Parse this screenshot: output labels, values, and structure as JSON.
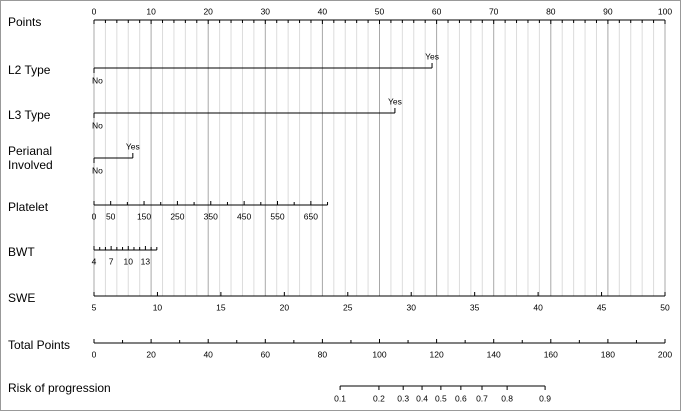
{
  "chart_data": {
    "type": "nomogram",
    "grid": true,
    "rows": [
      {
        "kind": "points",
        "label": "Points",
        "lim": [
          0,
          100
        ],
        "ticks": [
          0,
          10,
          20,
          30,
          40,
          50,
          60,
          70,
          80,
          90,
          100
        ],
        "minor_ticks": [
          2,
          4,
          6,
          8,
          12,
          14,
          16,
          18,
          22,
          24,
          26,
          28,
          32,
          34,
          36,
          38,
          42,
          44,
          46,
          48,
          52,
          54,
          56,
          58,
          62,
          64,
          66,
          68,
          72,
          74,
          76,
          78,
          82,
          84,
          86,
          88,
          92,
          94,
          96,
          98
        ]
      },
      {
        "kind": "categorical",
        "label": "L2 Type",
        "categories": [
          "No",
          "Yes"
        ],
        "points": [
          0,
          59.2
        ]
      },
      {
        "kind": "categorical",
        "label": "L3 Type",
        "categories": [
          "No",
          "Yes"
        ],
        "points": [
          0,
          52.7
        ]
      },
      {
        "kind": "categorical",
        "label": [
          "Perianal",
          "Involved"
        ],
        "categories": [
          "No",
          "Yes"
        ],
        "points": [
          0,
          6.8
        ]
      },
      {
        "kind": "axis",
        "label": "Platelet",
        "lim": [
          0,
          700
        ],
        "points_lim": [
          0,
          40.9
        ],
        "ticks": [
          0,
          50,
          150,
          250,
          350,
          450,
          550,
          650
        ],
        "minor_ticks": [
          100,
          200,
          300,
          400,
          500,
          600,
          700
        ]
      },
      {
        "kind": "axis",
        "label": "BWT",
        "lim": [
          4,
          15
        ],
        "points_lim": [
          0,
          11.0
        ],
        "ticks": [
          4,
          7,
          10,
          13
        ],
        "minor_ticks": [
          5,
          6,
          8,
          9,
          11,
          12,
          14,
          15
        ]
      },
      {
        "kind": "axis",
        "label": "SWE",
        "lim": [
          5,
          50
        ],
        "ticks": [
          5,
          10,
          15,
          20,
          25,
          30,
          35,
          40,
          45,
          50
        ],
        "minor_ticks": []
      },
      {
        "kind": "total",
        "label": "Total Points",
        "lim": [
          0,
          200
        ],
        "ticks": [
          0,
          20,
          40,
          60,
          80,
          100,
          120,
          140,
          160,
          180,
          200
        ],
        "minor_ticks": [
          10,
          30,
          50,
          70,
          90,
          110,
          130,
          150,
          170,
          190
        ]
      },
      {
        "kind": "risk",
        "label": "Risk of progression",
        "ticks": [
          0.1,
          0.2,
          0.3,
          0.4,
          0.5,
          0.6,
          0.7,
          0.8,
          0.9
        ],
        "total_points": [
          86.2,
          99.8,
          108.3,
          114.9,
          121.5,
          128.5,
          135.9,
          144.7,
          158.0
        ]
      }
    ]
  }
}
